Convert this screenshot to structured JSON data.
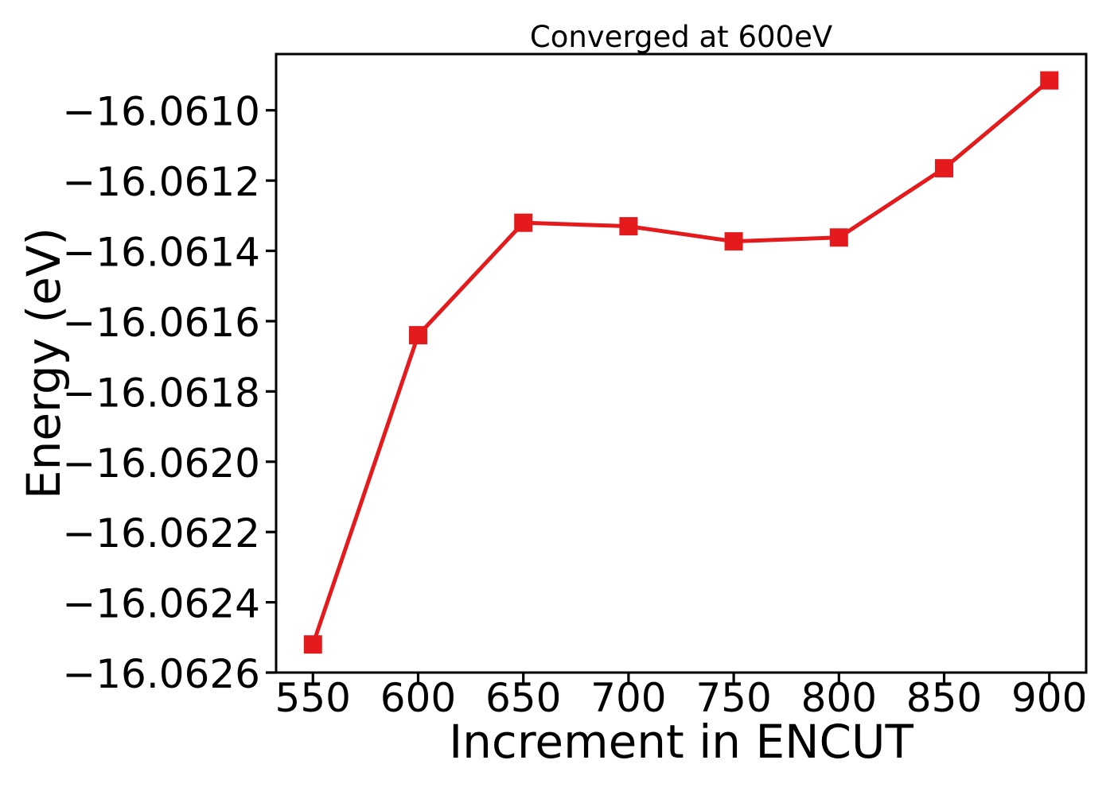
{
  "figure": {
    "background": "#ffffff",
    "text_color": "#000000"
  },
  "chart_data": {
    "type": "line",
    "title": "Converged at 600eV",
    "xlabel": "Increment in ENCUT",
    "ylabel": "Energy (eV)",
    "x": [
      550,
      600,
      650,
      700,
      750,
      800,
      850,
      900
    ],
    "y": [
      -16.06252,
      -16.06164,
      -16.06132,
      -16.06133,
      -16.061373,
      -16.061362,
      -16.061165,
      -16.060915
    ],
    "xlim": [
      532.5,
      917.5
    ],
    "ylim": [
      -16.0626,
      -16.06084
    ],
    "xticks": [
      550,
      600,
      650,
      700,
      750,
      800,
      850,
      900
    ],
    "xtick_labels": [
      "550",
      "600",
      "650",
      "700",
      "750",
      "800",
      "850",
      "900"
    ],
    "yticks": [
      -16.061,
      -16.0612,
      -16.0614,
      -16.0616,
      -16.0618,
      -16.062,
      -16.0622,
      -16.0624,
      -16.0626
    ],
    "ytick_labels": [
      "−16.0610",
      "−16.0612",
      "−16.0614",
      "−16.0616",
      "−16.0618",
      "−16.0620",
      "−16.0622",
      "−16.0624",
      "−16.0626"
    ],
    "line_color": "#e41a1c",
    "marker": "square",
    "grid": false,
    "legend": null
  }
}
